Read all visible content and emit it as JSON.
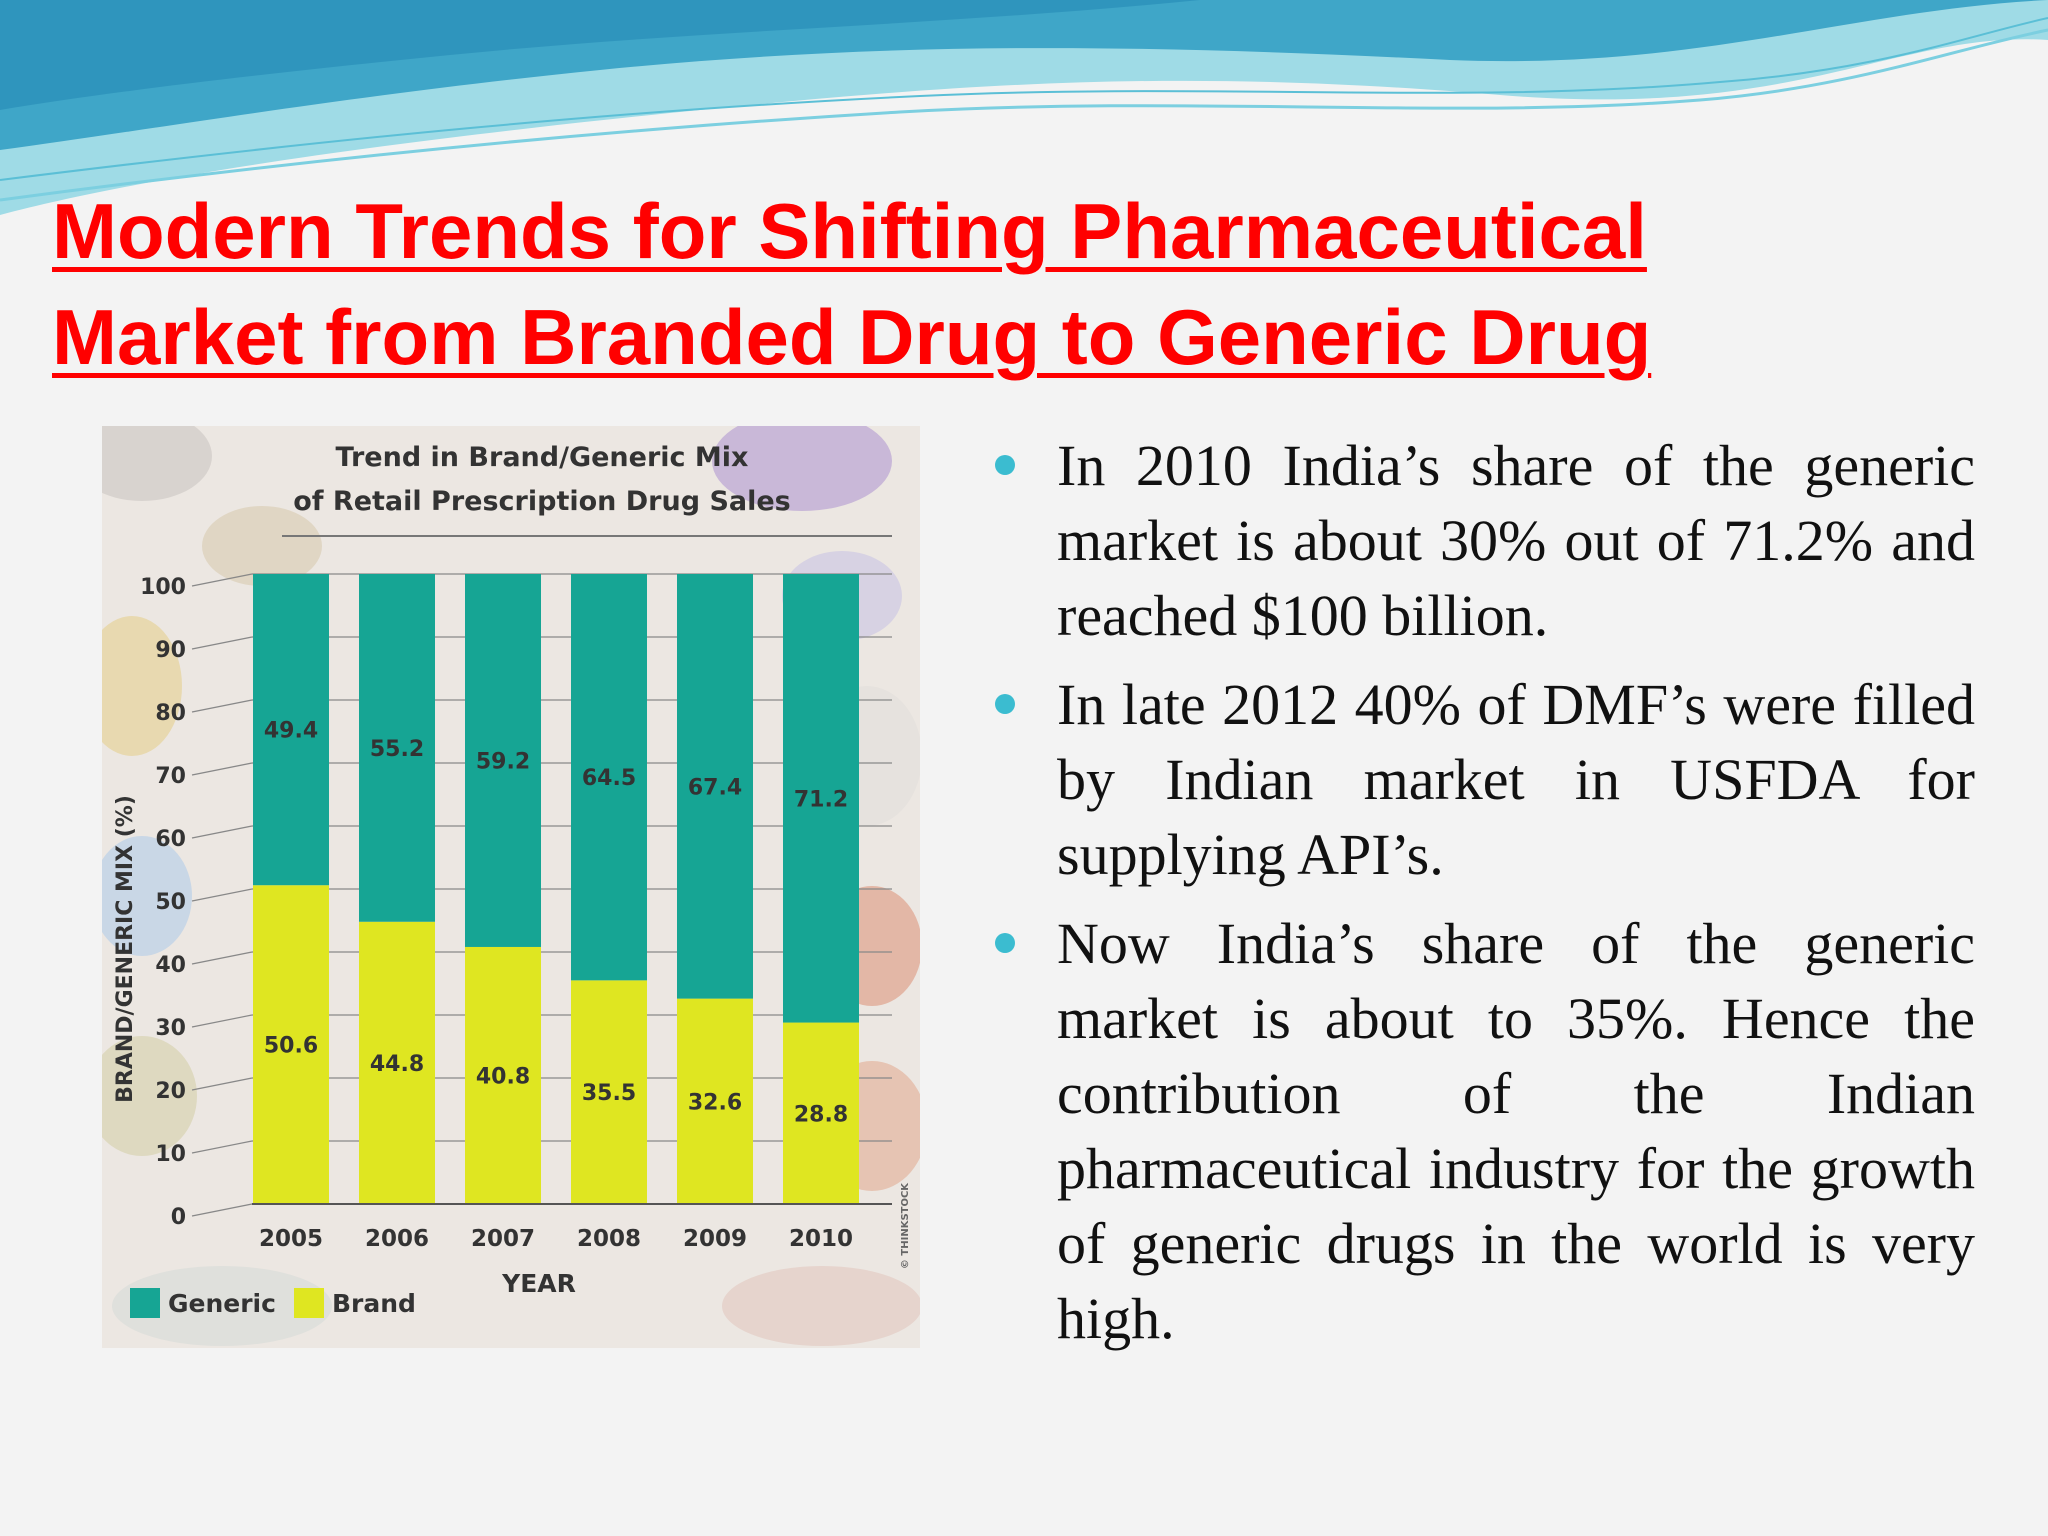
{
  "slide": {
    "title_line1": "Modern Trends for Shifting Pharmaceutical",
    "title_line2": "Market from Branded Drug to Generic Drug",
    "bullets": [
      "In 2010 India’s share of the generic market is about 30%  out of 71.2% and reached $100 billion.",
      "In late 2012 40% of DMF’s were filled by Indian market in USFDA for supplying API’s.",
      "Now India’s share of the generic market is about to 35%. Hence the contribution of the Indian pharmaceutical industry for the growth of generic drugs in the world is very high."
    ]
  },
  "colors": {
    "title": "#ff0000",
    "bullet": "#3bbcd0",
    "generic": "#16a594",
    "brand": "#dfe621"
  },
  "chart_data": {
    "type": "bar",
    "stacked": true,
    "title_line1": "Trend in Brand/Generic Mix",
    "title_line2": "of Retail Prescription Drug Sales",
    "ylabel": "BRAND/GENERIC MIX (%)",
    "xlabel": "YEAR",
    "categories": [
      "2005",
      "2006",
      "2007",
      "2008",
      "2009",
      "2010"
    ],
    "series": [
      {
        "name": "Generic",
        "values": [
          49.4,
          55.2,
          59.2,
          64.5,
          67.4,
          71.2
        ]
      },
      {
        "name": "Brand",
        "values": [
          50.6,
          44.8,
          40.8,
          35.5,
          32.6,
          28.8
        ]
      }
    ],
    "ylim": [
      0,
      100
    ],
    "yticks": [
      0,
      10,
      20,
      30,
      40,
      50,
      60,
      70,
      80,
      90,
      100
    ],
    "grid": true,
    "legend": "bottom-left",
    "credit": "© THINKSTOCK"
  }
}
